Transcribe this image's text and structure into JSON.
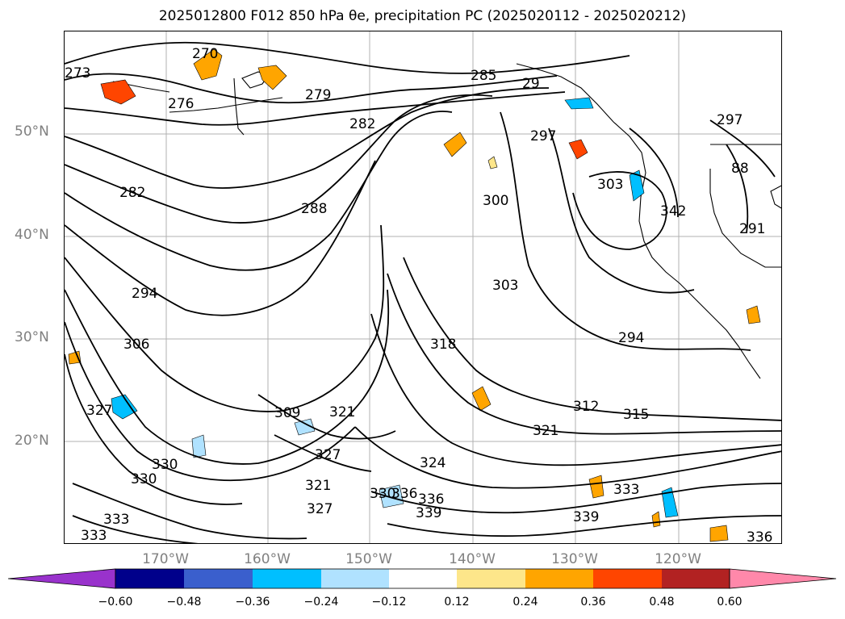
{
  "title": "2025012800 F012 850 hPa θe, precipitation PC (2025020112 - 2025020212)",
  "lat_labels": [
    "50°N",
    "40°N",
    "30°N",
    "20°N"
  ],
  "lon_labels": [
    "170°W",
    "160°W",
    "150°W",
    "140°W",
    "130°W",
    "120°W"
  ],
  "contour_labels": [
    "270",
    "273",
    "276",
    "279",
    "282",
    "282",
    "285",
    "288",
    "29",
    "294",
    "294",
    "297",
    "297",
    "300",
    "303",
    "303",
    "306",
    "309",
    "312",
    "315",
    "318",
    "321",
    "321",
    "321",
    "324",
    "327",
    "327",
    "327",
    "330",
    "330",
    "330",
    "333",
    "333",
    "333",
    "336",
    "336",
    "336",
    "339",
    "339",
    "342",
    "291",
    "88",
    "8"
  ],
  "colorbar": {
    "ticks": [
      "−0.60",
      "−0.48",
      "−0.36",
      "−0.24",
      "−0.12",
      "0.12",
      "0.24",
      "0.36",
      "0.48",
      "0.60"
    ],
    "colors": [
      "#9932cc",
      "#00008b",
      "#3a5fcd",
      "#00bfff",
      "#b0e2ff",
      "#ffffff",
      "#fde68a",
      "#ffa500",
      "#ff4500",
      "#b22222",
      "#ff88aa"
    ]
  },
  "legend_icons": [
    "contour-line",
    "precip-shading"
  ]
}
